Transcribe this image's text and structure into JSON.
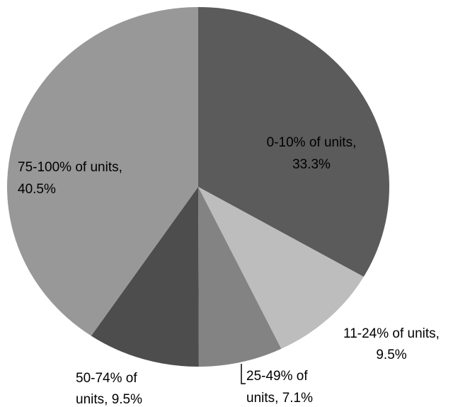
{
  "chart_data": {
    "type": "pie",
    "values": [
      33.3,
      9.5,
      7.1,
      9.5,
      40.5
    ],
    "colors": [
      "#5b5b5b",
      "#bdbdbd",
      "#838383",
      "#4d4d4d",
      "#989898"
    ],
    "labels": [
      [
        "0-10% of units,",
        "33.3%"
      ],
      [
        "11-24% of units,",
        "9.5%"
      ],
      [
        "25-49% of",
        "units, 7.1%"
      ],
      [
        "50-74% of",
        "units, 9.5%"
      ],
      [
        "75-100% of units,",
        "40.5%"
      ]
    ]
  }
}
